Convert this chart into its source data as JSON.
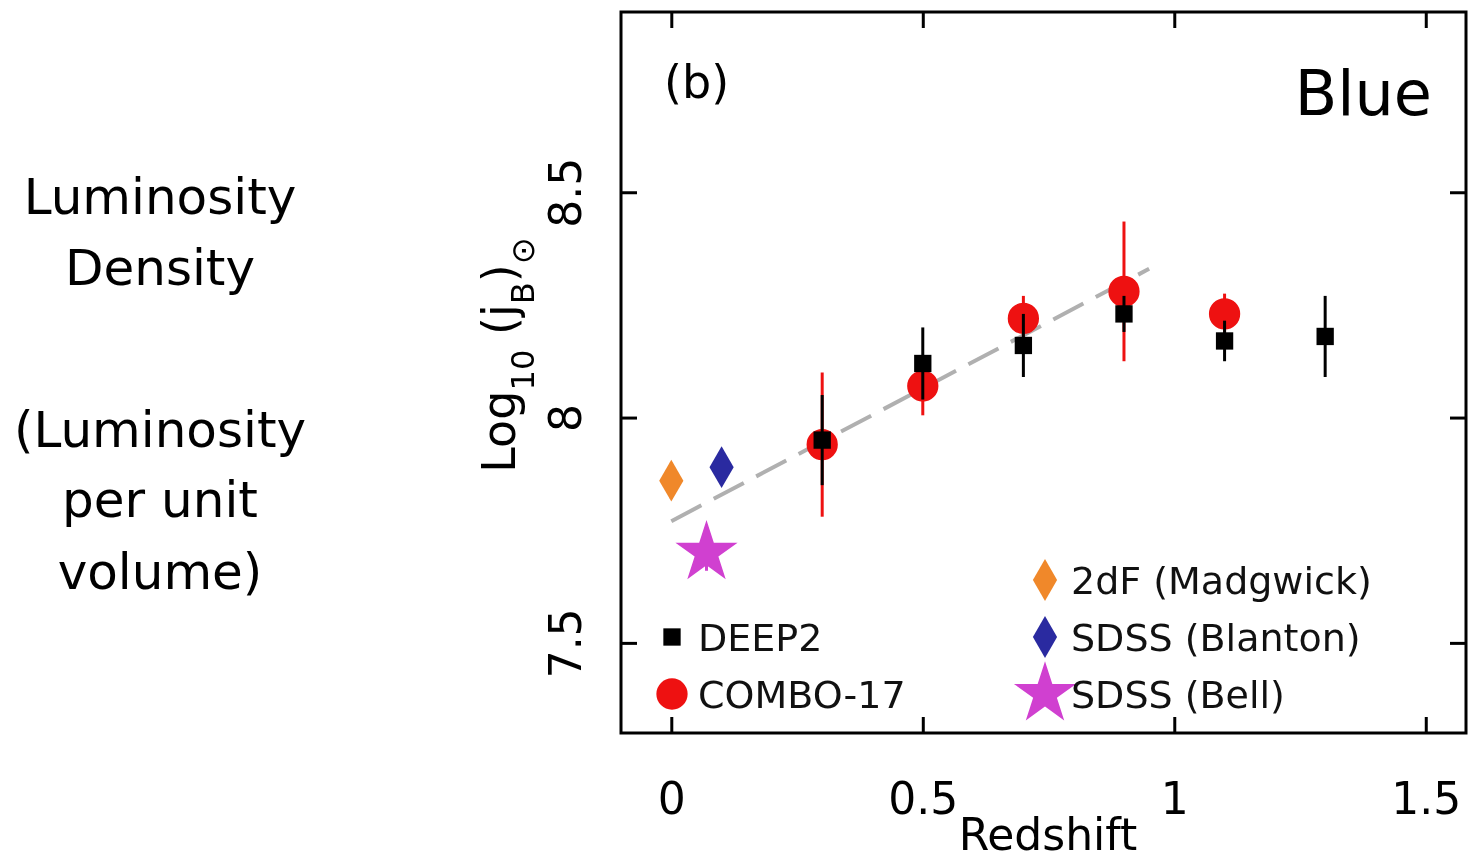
{
  "chart_data": {
    "type": "scatter",
    "xlabel": "Redshift",
    "ylabel": "Log$_{10}$ (j$_{B}$)$_{⊙}$",
    "annotations": [
      "Luminosity\nDensity",
      "(Luminosity\nper unit\nvolume)",
      "(b)",
      "Blue"
    ],
    "xlim": [
      -0.1,
      1.58
    ],
    "ylim": [
      7.3,
      8.9
    ],
    "xticks": [
      0,
      0.5,
      1,
      1.5
    ],
    "yticks": [
      7.5,
      8,
      8.5
    ],
    "grid": false,
    "legend": "bottom",
    "series": [
      {
        "name": "DEEP2",
        "color": "#000000",
        "marker": "square",
        "x": [
          0.3,
          0.5,
          0.7,
          0.9,
          1.1,
          1.3
        ],
        "values": [
          7.95,
          8.12,
          8.16,
          8.23,
          8.17,
          8.18
        ],
        "errors": [
          0.1,
          0.08,
          0.07,
          0.04,
          0.045,
          0.09
        ]
      },
      {
        "name": "COMBO-17",
        "color": "#ee1111",
        "marker": "circle",
        "x": [
          0.3,
          0.5,
          0.7,
          0.9,
          1.1
        ],
        "values": [
          7.94,
          8.07,
          8.22,
          8.28,
          8.23
        ],
        "errors": [
          0.16,
          0.065,
          0.05,
          0.155,
          0.045
        ]
      },
      {
        "name": "2dF (Madgwick)",
        "color": "#f0882a",
        "marker": "diamond",
        "x": [
          0
        ],
        "values": [
          7.86
        ],
        "errors": [
          0.04
        ]
      },
      {
        "name": "SDSS (Blanton)",
        "color": "#2a2aa0",
        "marker": "diamond",
        "x": [
          0.1
        ],
        "values": [
          7.89
        ],
        "errors": [
          null
        ]
      },
      {
        "name": "SDSS (Bell)",
        "color": "#d040d0",
        "marker": "star",
        "x": [
          0.07
        ],
        "values": [
          7.7
        ],
        "errors": [
          0.04
        ]
      },
      {
        "type": "line",
        "color": "#b0b0b0",
        "line_style": "dashed",
        "marker": "none",
        "x": [
          0,
          0.95
        ],
        "values": [
          7.77,
          8.33
        ]
      }
    ]
  }
}
